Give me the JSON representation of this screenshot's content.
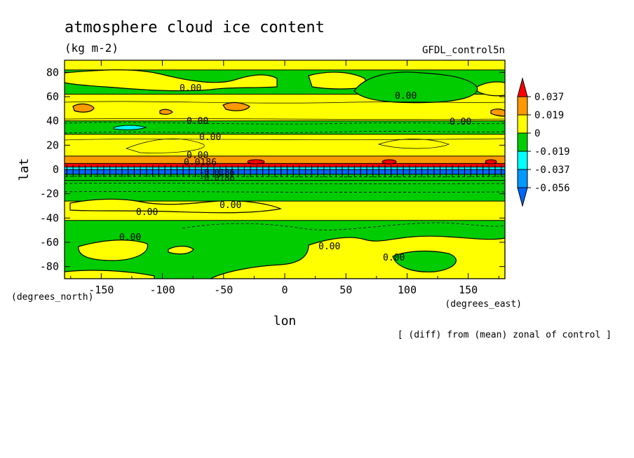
{
  "chart_data": {
    "type": "heatmap",
    "title": "atmosphere cloud ice content",
    "units": "(kg m-2)",
    "dataset": "GFDL_control5n",
    "xlabel": "lon",
    "ylabel": "lat",
    "x_units": "(degrees_east)",
    "y_units": "(degrees_north)",
    "xlim": [
      -180,
      180
    ],
    "ylim": [
      -90,
      90
    ],
    "x_ticks": [
      -150,
      -100,
      -50,
      0,
      50,
      100,
      150
    ],
    "y_ticks": [
      80,
      60,
      40,
      20,
      0,
      -20,
      -40,
      -60,
      -80
    ],
    "footnote": "[ (diff) from (mean) zonal of control ]",
    "colorbar": {
      "labels": [
        "0.037",
        "0.019",
        "0",
        "-0.019",
        "-0.037",
        "-0.056"
      ],
      "colors": [
        "#ff0000",
        "#ff9900",
        "#ffff00",
        "#00cc00",
        "#00ffff",
        "#0099ff",
        "#0066ff"
      ]
    },
    "contour_labels": [
      "0.00",
      "0.00",
      "0.00",
      "0.00",
      "0.00",
      "0.00",
      "0.0186",
      "0.00",
      "0.00",
      "0.00",
      "0.00",
      "0.00",
      "-0.0186",
      "-0.0186"
    ],
    "bands": [
      {
        "lat": [
          82,
          90
        ],
        "level": "0"
      },
      {
        "lat": [
          62,
          82
        ],
        "level": "-0.019"
      },
      {
        "lat": [
          40,
          62
        ],
        "level": "0"
      },
      {
        "lat": [
          29,
          40
        ],
        "level": "-0.019"
      },
      {
        "lat": [
          11,
          29
        ],
        "level": "0"
      },
      {
        "lat": [
          5,
          11
        ],
        "level": "0.019"
      },
      {
        "lat": [
          2,
          5
        ],
        "level": "0.037"
      },
      {
        "lat": [
          0,
          2
        ],
        "level": "-0.037"
      },
      {
        "lat": [
          -4,
          0
        ],
        "level": "-0.056"
      },
      {
        "lat": [
          -9,
          -4
        ],
        "level": "-0.019"
      },
      {
        "lat": [
          -26,
          -9
        ],
        "level": "-0.019"
      },
      {
        "lat": [
          -42,
          -26
        ],
        "level": "0"
      },
      {
        "lat": [
          -90,
          -42
        ],
        "level": "-0.019"
      }
    ]
  }
}
